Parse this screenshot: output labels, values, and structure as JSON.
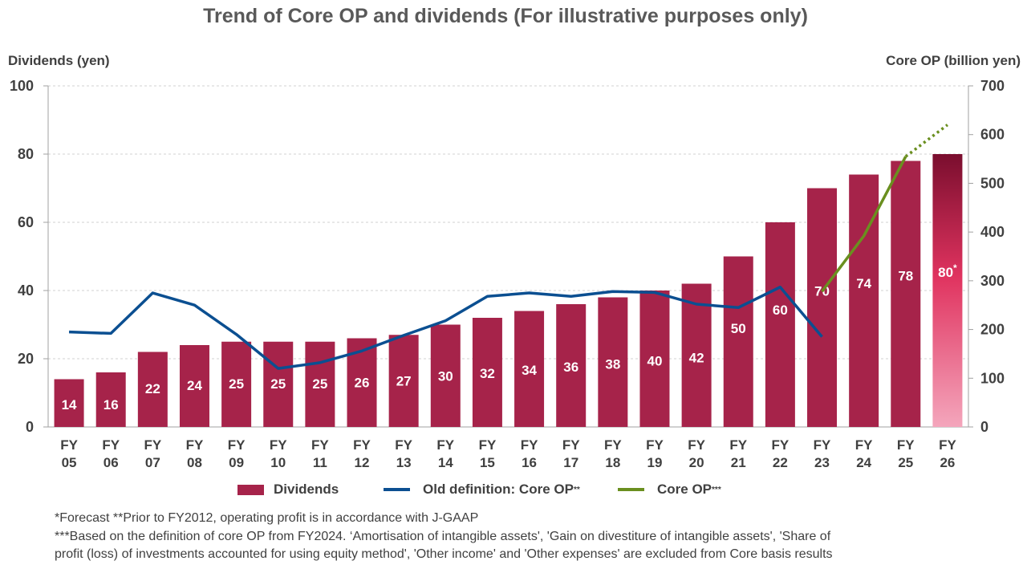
{
  "title": "Trend of Core OP and dividends (For illustrative purposes only)",
  "left_axis_title": "Dividends (yen)",
  "right_axis_title": "Core OP (billion yen)",
  "legend": {
    "dividends": "Dividends",
    "old_core_op": "Old definition: Core OP",
    "old_core_op_sup": "**",
    "core_op": "Core OP",
    "core_op_sup": "***"
  },
  "footnotes": {
    "line1": "*Forecast   **Prior to FY2012, operating profit is in accordance with J-GAAP",
    "line2": "***Based on the definition of core OP from FY2024. ‘Amortisation of intangible assets', 'Gain on divestiture of intangible assets', 'Share of",
    "line3": "profit (loss) of investments accounted for using equity method', 'Other income' and 'Other expenses' are excluded from Core basis results"
  },
  "chart_data": {
    "type": "bar",
    "title": "Trend of Core OP and dividends (For illustrative purposes only)",
    "categories": [
      [
        "FY",
        "05"
      ],
      [
        "FY",
        "06"
      ],
      [
        "FY",
        "07"
      ],
      [
        "FY",
        "08"
      ],
      [
        "FY",
        "09"
      ],
      [
        "FY",
        "10"
      ],
      [
        "FY",
        "11"
      ],
      [
        "FY",
        "12"
      ],
      [
        "FY",
        "13"
      ],
      [
        "FY",
        "14"
      ],
      [
        "FY",
        "15"
      ],
      [
        "FY",
        "16"
      ],
      [
        "FY",
        "17"
      ],
      [
        "FY",
        "18"
      ],
      [
        "FY",
        "19"
      ],
      [
        "FY",
        "20"
      ],
      [
        "FY",
        "21"
      ],
      [
        "FY",
        "22"
      ],
      [
        "FY",
        "23"
      ],
      [
        "FY",
        "24"
      ],
      [
        "FY",
        "25"
      ],
      [
        "FY",
        "26"
      ]
    ],
    "ylim_left": [
      0,
      100
    ],
    "yticks_left": [
      0,
      20,
      40,
      60,
      80,
      100
    ],
    "ylim_right": [
      0,
      700
    ],
    "yticks_right": [
      0,
      100,
      200,
      300,
      400,
      500,
      600,
      700
    ],
    "grid": true,
    "series": [
      {
        "name": "Dividends",
        "axis": "left",
        "kind": "bar",
        "color": "#A6234A",
        "values": [
          14,
          16,
          22,
          24,
          25,
          25,
          25,
          26,
          27,
          30,
          32,
          34,
          36,
          38,
          40,
          42,
          50,
          60,
          70,
          74,
          78,
          80
        ],
        "labels": [
          "14",
          "16",
          "22",
          "24",
          "25",
          "25",
          "25",
          "26",
          "27",
          "30",
          "32",
          "34",
          "36",
          "38",
          "40",
          "42",
          "50",
          "60",
          "70",
          "74",
          "78",
          "80"
        ],
        "forecast_label_suffix": "*",
        "forecast_gradient": [
          "#7A0E2E",
          "#E0335F",
          "#F4A6BC"
        ]
      },
      {
        "name": "Old definition: Core OP**",
        "axis": "right",
        "kind": "line",
        "color": "#0B4F91",
        "values": [
          195,
          192,
          275,
          250,
          190,
          120,
          132,
          156,
          188,
          218,
          268,
          275,
          268,
          278,
          276,
          252,
          245,
          287,
          185,
          null,
          null,
          null
        ]
      },
      {
        "name": "Core OP***",
        "axis": "right",
        "kind": "line",
        "color": "#6A8F1F",
        "values": [
          null,
          null,
          null,
          null,
          null,
          null,
          null,
          null,
          null,
          null,
          null,
          null,
          null,
          null,
          null,
          null,
          null,
          null,
          278,
          392,
          555,
          620
        ],
        "dotted_from_index": 20
      }
    ]
  }
}
